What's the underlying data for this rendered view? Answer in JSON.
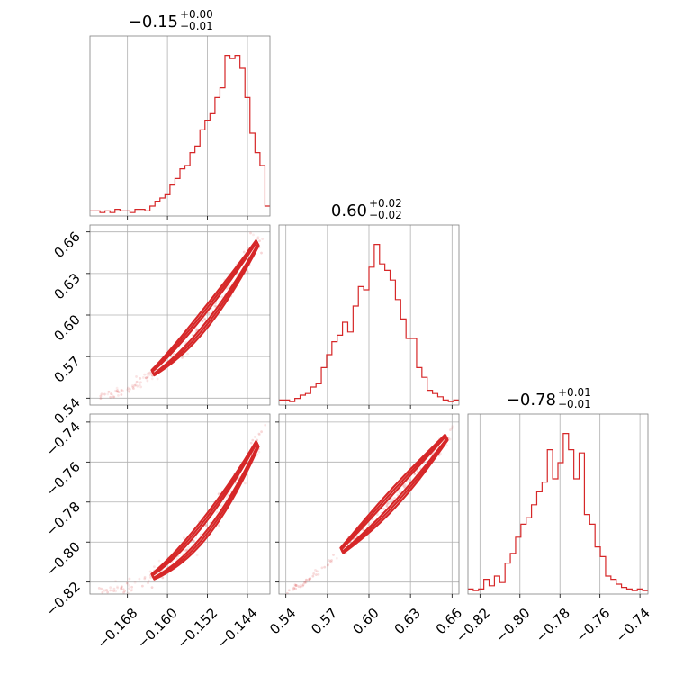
{
  "chart_data": {
    "type": "corner",
    "color": "#d62728",
    "parameters": [
      {
        "id": "p0",
        "title": {
          "median": "−0.15",
          "plus": "+0.00",
          "minus": "−0.01"
        },
        "range": [
          -0.1755,
          -0.1395
        ],
        "ticks": [
          -0.168,
          -0.16,
          -0.152,
          -0.144
        ],
        "tick_labels": [
          "−0.168",
          "−0.160",
          "−0.152",
          "−0.144"
        ],
        "hist": [
          0.02,
          0.02,
          0.01,
          0.02,
          0.01,
          0.03,
          0.02,
          0.02,
          0.01,
          0.03,
          0.03,
          0.02,
          0.05,
          0.08,
          0.1,
          0.12,
          0.18,
          0.22,
          0.28,
          0.3,
          0.38,
          0.42,
          0.52,
          0.58,
          0.62,
          0.72,
          0.78,
          0.98,
          0.96,
          0.98,
          0.9,
          0.72,
          0.5,
          0.38,
          0.3,
          0.05
        ]
      },
      {
        "id": "p1",
        "title": {
          "median": "0.60",
          "plus": "+0.02",
          "minus": "−0.02"
        },
        "range": [
          0.535,
          0.665
        ],
        "ticks": [
          0.54,
          0.57,
          0.6,
          0.63,
          0.66
        ],
        "tick_labels": [
          "0.54",
          "0.57",
          "0.60",
          "0.63",
          "0.66"
        ],
        "hist": [
          0.02,
          0.02,
          0.01,
          0.03,
          0.05,
          0.06,
          0.1,
          0.12,
          0.22,
          0.3,
          0.38,
          0.42,
          0.5,
          0.44,
          0.6,
          0.72,
          0.7,
          0.84,
          0.98,
          0.86,
          0.82,
          0.76,
          0.64,
          0.52,
          0.4,
          0.4,
          0.22,
          0.16,
          0.08,
          0.06,
          0.04,
          0.02,
          0.01,
          0.02
        ]
      },
      {
        "id": "p2",
        "title": {
          "median": "−0.78",
          "plus": "+0.01",
          "minus": "−0.01"
        },
        "range": [
          -0.826,
          -0.736
        ],
        "ticks": [
          -0.82,
          -0.8,
          -0.78,
          -0.76,
          -0.74
        ],
        "tick_labels": [
          "−0.82",
          "−0.80",
          "−0.78",
          "−0.76",
          "−0.74"
        ],
        "hist": [
          0.02,
          0.01,
          0.02,
          0.08,
          0.04,
          0.1,
          0.06,
          0.18,
          0.24,
          0.34,
          0.42,
          0.46,
          0.54,
          0.62,
          0.68,
          0.88,
          0.7,
          0.8,
          0.98,
          0.88,
          0.7,
          0.86,
          0.48,
          0.42,
          0.28,
          0.22,
          0.1,
          0.08,
          0.05,
          0.03,
          0.02,
          0.01,
          0.02,
          0.01
        ]
      }
    ],
    "relation": {
      "p1_from_p0": {
        "x0": -0.172,
        "x1": -0.1405,
        "y0": 0.542,
        "y1": 0.661,
        "power": 1.6
      },
      "p2_from_p1": {
        "x0": 0.54,
        "x1": 0.665,
        "y0": -0.825,
        "y1": -0.74,
        "power": 1.25
      }
    },
    "grid": true
  }
}
